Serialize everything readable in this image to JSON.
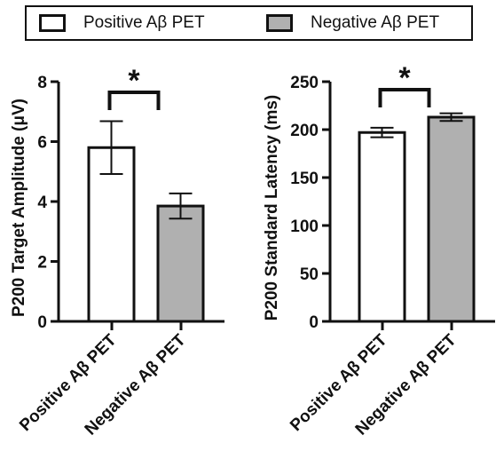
{
  "legend": {
    "items": [
      {
        "label": "Positive Aβ PET",
        "color": "#ffffff"
      },
      {
        "label": "Negative Aβ PET",
        "color": "#b0b0b0"
      }
    ]
  },
  "chart_data": [
    {
      "type": "bar",
      "categories": [
        "Positive Aβ PET",
        "Negative Aβ PET"
      ],
      "values": [
        5.8,
        3.85
      ],
      "error": [
        0.88,
        0.42
      ],
      "colors": [
        "#ffffff",
        "#b0b0b0"
      ],
      "ylabel": "P200 Target Amplitude (μV)",
      "ylim": [
        0,
        8
      ],
      "yticks": [
        0,
        2,
        4,
        6,
        8
      ],
      "significance": "*",
      "grid": false
    },
    {
      "type": "bar",
      "categories": [
        "Positive Aβ PET",
        "Negative Aβ PET"
      ],
      "values": [
        197,
        213
      ],
      "error": [
        5,
        4
      ],
      "colors": [
        "#ffffff",
        "#b0b0b0"
      ],
      "ylabel": "P200 Standard Latency (ms)",
      "ylim": [
        0,
        250
      ],
      "yticks": [
        0,
        50,
        100,
        150,
        200,
        250
      ],
      "significance": "*",
      "grid": false
    }
  ]
}
